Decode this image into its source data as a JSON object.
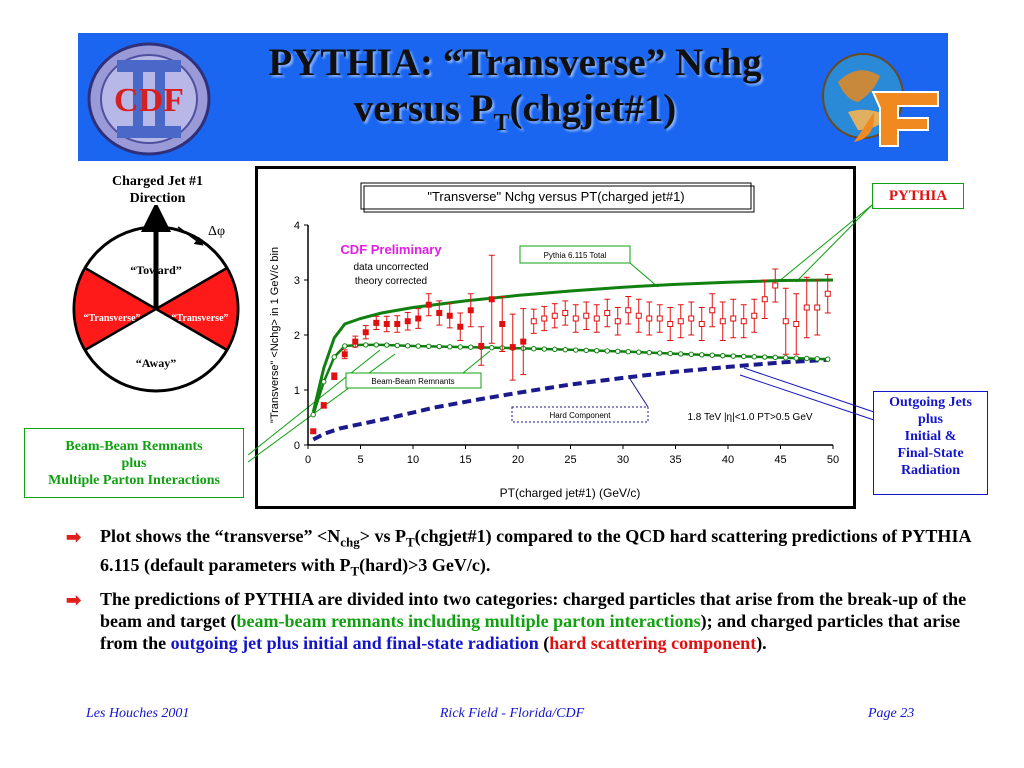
{
  "slide": {
    "title_main": "PYTHIA: “Transverse” Nchg",
    "title_sub_pre": "versus P",
    "title_sub_sub": "T",
    "title_sub_post": "(chgjet#1)"
  },
  "logo_left": {
    "text": "CDF"
  },
  "diagram": {
    "title_line1": "Charged Jet #1",
    "title_line2": "Direction",
    "delta_phi": "Δφ",
    "toward": "“Toward”",
    "away": "“Away”",
    "transverse_left": "“Transverse”",
    "transverse_right": "“Transverse”"
  },
  "callouts": {
    "pythia": "PYTHIA",
    "outgoing_l1": "Outgoing Jets",
    "outgoing_l2": "plus",
    "outgoing_l3": "Initial &",
    "outgoing_l4": "Final-State",
    "outgoing_l5": "Radiation",
    "bbr_l1": "Beam-Beam Remnants",
    "bbr_l2": "plus",
    "bbr_l3": "Multiple Parton Interactions"
  },
  "colors": {
    "banner": "#1a66f0",
    "data_red": "#e01010",
    "pythia_green": "#108010",
    "hard_blue": "#1a1a8c",
    "diagram_red": "#ff1a1a"
  },
  "chart_data": {
    "type": "line",
    "title": "\"Transverse\" Nchg versus PT(charged jet#1)",
    "xlabel": "PT(charged jet#1)  (GeV/c)",
    "ylabel": "\"Transverse\" <Nchg> in 1 GeV/c bin",
    "xlim": [
      0,
      50
    ],
    "ylim": [
      0,
      4
    ],
    "x_ticks": [
      "0",
      "5",
      "10",
      "15",
      "20",
      "25",
      "30",
      "35",
      "40",
      "45",
      "50"
    ],
    "y_ticks": [
      "0",
      "1",
      "2",
      "3",
      "4"
    ],
    "annotations": {
      "cdf_preliminary": "CDF Preliminary",
      "data_uncorrected": "data uncorrected",
      "theory_corrected": "theory corrected",
      "pythia_total_label": "Pythia 6.115 Total",
      "bbr_label": "Beam-Beam Remnants",
      "hard_label": "Hard Component",
      "cuts": "1.8 TeV |η|<1.0 PT>0.5 GeV"
    },
    "series": [
      {
        "style": "data",
        "x": [
          0.5,
          1.5,
          2.5,
          3.5,
          4.5,
          5.5,
          6.5,
          7.5,
          8.5,
          9.5,
          10.5,
          11.5,
          12.5,
          13.5,
          14.5,
          15.5,
          16.5,
          17.5,
          18.5,
          19.5,
          20.5,
          21.5,
          22.5,
          23.5,
          24.5,
          25.5,
          26.5,
          27.5,
          28.5,
          29.5,
          30.5,
          31.5,
          32.5,
          33.5,
          34.5,
          35.5,
          36.5,
          37.5,
          38.5,
          39.5,
          40.5,
          41.5,
          42.5,
          43.5,
          44.5,
          45.5,
          46.5,
          47.5,
          48.5,
          49.5
        ],
        "y": [
          0.25,
          0.72,
          1.25,
          1.65,
          1.88,
          2.05,
          2.22,
          2.2,
          2.2,
          2.25,
          2.3,
          2.55,
          2.4,
          2.35,
          2.15,
          2.45,
          1.8,
          2.65,
          2.2,
          1.78,
          1.88,
          2.25,
          2.3,
          2.35,
          2.4,
          2.3,
          2.35,
          2.3,
          2.4,
          2.25,
          2.45,
          2.35,
          2.3,
          2.3,
          2.2,
          2.25,
          2.3,
          2.2,
          2.45,
          2.25,
          2.3,
          2.25,
          2.35,
          2.65,
          2.9,
          2.25,
          2.2,
          2.5,
          2.5,
          2.75
        ],
        "err": [
          0.03,
          0.05,
          0.06,
          0.08,
          0.1,
          0.12,
          0.12,
          0.14,
          0.15,
          0.16,
          0.18,
          0.2,
          0.22,
          0.22,
          0.25,
          0.3,
          0.35,
          0.8,
          0.5,
          0.6,
          0.6,
          0.22,
          0.22,
          0.22,
          0.22,
          0.25,
          0.25,
          0.25,
          0.25,
          0.25,
          0.25,
          0.3,
          0.3,
          0.25,
          0.3,
          0.3,
          0.3,
          0.3,
          0.3,
          0.35,
          0.35,
          0.3,
          0.3,
          0.35,
          0.3,
          0.6,
          0.55,
          0.55,
          0.5,
          0.35
        ]
      },
      {
        "name": "Pythia 6.115 Total",
        "style": "solid",
        "x": [
          0.5,
          1.5,
          2.5,
          3.5,
          5,
          7,
          10,
          15,
          20,
          25,
          30,
          35,
          40,
          45,
          50
        ],
        "y": [
          0.6,
          1.4,
          1.95,
          2.2,
          2.3,
          2.4,
          2.5,
          2.62,
          2.72,
          2.8,
          2.87,
          2.92,
          2.96,
          2.99,
          3.0
        ]
      },
      {
        "name": "Beam-Beam Remnants",
        "style": "marker",
        "x": [
          0.5,
          1.5,
          2.5,
          3.5,
          5,
          7,
          10,
          15,
          20,
          25,
          30,
          35,
          40,
          45,
          49.5
        ],
        "y": [
          0.55,
          1.15,
          1.6,
          1.8,
          1.82,
          1.82,
          1.8,
          1.78,
          1.76,
          1.73,
          1.7,
          1.66,
          1.62,
          1.59,
          1.56
        ]
      },
      {
        "name": "Hard Component",
        "style": "dashed",
        "x": [
          0.5,
          1.5,
          3,
          5,
          8,
          12,
          16,
          20,
          25,
          30,
          35,
          40,
          45,
          49.5
        ],
        "y": [
          0.1,
          0.2,
          0.3,
          0.38,
          0.5,
          0.68,
          0.82,
          0.95,
          1.1,
          1.22,
          1.33,
          1.42,
          1.5,
          1.55
        ]
      }
    ]
  },
  "bullets": [
    {
      "p1": "Plot shows the “transverse” <N",
      "p1_sub": "chg",
      "p2": "> vs P",
      "p2_sub": "T",
      "p3": "(chgjet#1) compared to the QCD hard scattering predictions of PYTHIA 6.115 (default parameters with P",
      "p3_sub": "T",
      "p4": "(hard)>3 GeV/c)."
    },
    {
      "p1": "The predictions of PYTHIA are divided into two categories: charged particles that arise from the break-up of the beam and target (",
      "green": "beam-beam remnants including multiple parton interactions",
      "p2": "); and charged particles that arise from the ",
      "blue": "outgoing jet plus initial and final-state radiation",
      "p3": " (",
      "red": "hard scattering component",
      "p4": ")."
    }
  ],
  "footer": {
    "left": "Les Houches 2001",
    "center": "Rick Field - Florida/CDF",
    "right": "Page 23"
  }
}
